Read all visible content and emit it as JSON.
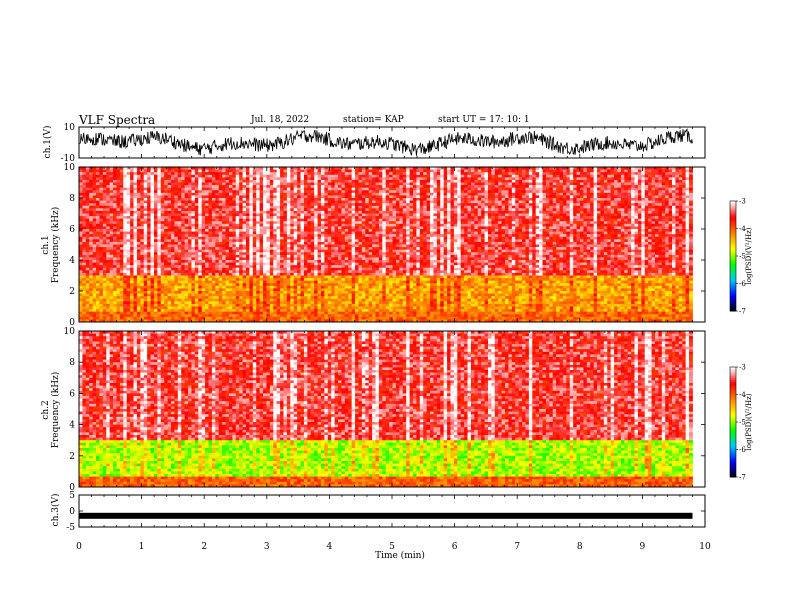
{
  "header": {
    "title": "VLF Spectra",
    "date": "Jul. 18, 2022",
    "station": "station= KAP",
    "start": "start UT = 17: 10: 1"
  },
  "colors": {
    "colormap": [
      "#000000",
      "#0000ff",
      "#00c8ff",
      "#00ff00",
      "#ffff00",
      "#ff8000",
      "#ff0000",
      "#ffffff"
    ]
  },
  "chart_data": [
    {
      "type": "line",
      "panel": "ch1-waveform",
      "ylabel": "ch.1(V)",
      "ylim": [
        -10,
        10
      ],
      "yticks": [
        10,
        -10
      ],
      "description_values": "dense oscillating waveform, roughly between -8 and 8 V, spanning 0 to 9.8 min"
    },
    {
      "type": "heatmap",
      "panel": "ch1-spectrogram",
      "ylabel": "ch.1\nFrequency (kHz)",
      "ylim": [
        0,
        10
      ],
      "yticks": [
        0,
        2,
        4,
        6,
        8,
        10
      ],
      "xlim": [
        0,
        9.8
      ],
      "colorbar": {
        "label": "log(PSD)(V²/Hz)",
        "range": [
          -7,
          -3
        ],
        "ticks": [
          "-3",
          "-4",
          "-5",
          "-6",
          "-7"
        ]
      },
      "dominant_level_high_freq": -3.5,
      "dominant_level_low_freq": -4.3
    },
    {
      "type": "heatmap",
      "panel": "ch2-spectrogram",
      "ylabel": "ch.2\nFrequency (kHz)",
      "ylim": [
        0,
        10
      ],
      "yticks": [
        0,
        2,
        4,
        6,
        8,
        10
      ],
      "xlim": [
        0,
        9.8
      ],
      "colorbar": {
        "label": "log(PSD)(V²/Hz)",
        "range": [
          -7,
          -3
        ],
        "ticks": [
          "-3",
          "-4",
          "-5",
          "-6",
          "-7"
        ]
      },
      "dominant_level_high_freq": -3.5,
      "dominant_level_low_freq": -4.9
    },
    {
      "type": "line",
      "panel": "ch3-waveform",
      "ylabel": "ch.3(V)",
      "ylim": [
        -5,
        5
      ],
      "yticks": [
        5,
        0,
        -5
      ],
      "level": -1.5
    }
  ],
  "xaxis": {
    "label": "Time (min)",
    "ticks": [
      "0",
      "1",
      "2",
      "3",
      "4",
      "5",
      "6",
      "7",
      "8",
      "9",
      "10"
    ],
    "range": [
      0,
      10
    ]
  }
}
